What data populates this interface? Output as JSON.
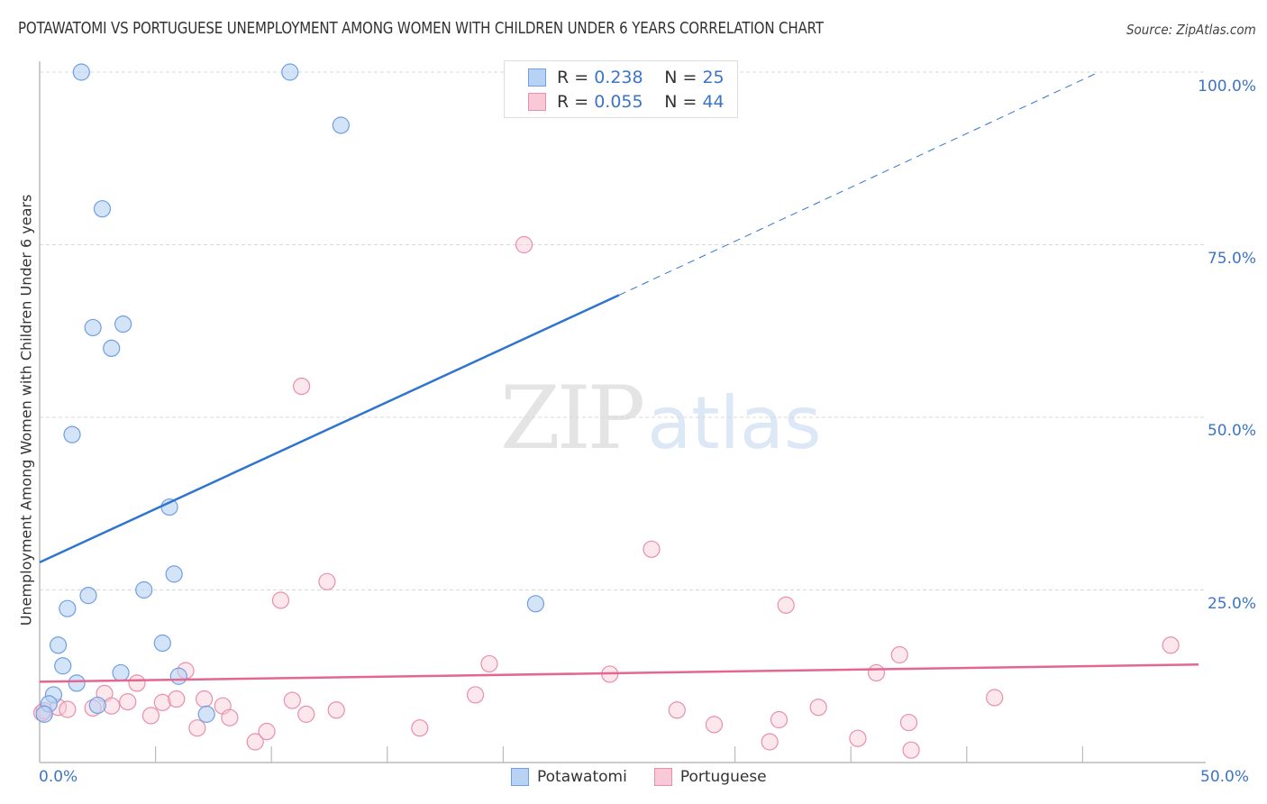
{
  "header": {
    "title": "POTAWATOMI VS PORTUGUESE UNEMPLOYMENT AMONG WOMEN WITH CHILDREN UNDER 6 YEARS CORRELATION CHART",
    "source": "Source: ZipAtlas.com"
  },
  "watermark": {
    "zip": "ZIP",
    "atlas": "atlas"
  },
  "legend": {
    "rows": [
      {
        "series": "Potawatomi",
        "r_label": "R =",
        "r_value": "0.238",
        "n_label": "N =",
        "n_value": "25",
        "color": "#b8d2f3",
        "border": "#6f9fe0"
      },
      {
        "series": "Portuguese",
        "r_label": "R =",
        "r_value": "0.055",
        "n_label": "N =",
        "n_value": "44",
        "color": "#f9c9d7",
        "border": "#e88fac"
      }
    ]
  },
  "bottom_legend": [
    {
      "label": "Potawatomi",
      "color": "#b8d2f3",
      "border": "#6f9fe0"
    },
    {
      "label": "Portuguese",
      "color": "#f9c9d7",
      "border": "#e88fac"
    }
  ],
  "axes": {
    "y_label": "Unemployment Among Women with Children Under 6 years",
    "y_ticks": [
      "100.0%",
      "75.0%",
      "50.0%",
      "25.0%"
    ],
    "x_ticks": {
      "left": "0.0%",
      "right": "50.0%"
    }
  },
  "chart_data": {
    "type": "scatter",
    "title": "POTAWATOMI VS PORTUGUESE UNEMPLOYMENT AMONG WOMEN WITH CHILDREN UNDER 6 YEARS CORRELATION CHART",
    "xlabel": "",
    "ylabel": "Unemployment Among Women with Children Under 6 years",
    "xlim": [
      0,
      50
    ],
    "ylim": [
      0,
      100
    ],
    "x_tick_labels": [
      "0.0%",
      "50.0%"
    ],
    "y_tick_labels": [
      "25.0%",
      "50.0%",
      "75.0%",
      "100.0%"
    ],
    "grid": true,
    "legend_position": "top-center",
    "series": [
      {
        "name": "Potawatomi",
        "color": "#6f9fe0",
        "R": 0.238,
        "N": 25,
        "trend": {
          "x0": 0,
          "y0": 29.0,
          "x1": 25,
          "y1": 67.7,
          "dashed_to": {
            "x": 45.7,
            "y": 100
          }
        },
        "points": [
          [
            1.8,
            100
          ],
          [
            10.8,
            100
          ],
          [
            13.0,
            92.3
          ],
          [
            2.7,
            80.2
          ],
          [
            2.3,
            63.0
          ],
          [
            3.6,
            63.5
          ],
          [
            3.1,
            60.0
          ],
          [
            1.4,
            47.5
          ],
          [
            5.6,
            37.0
          ],
          [
            5.8,
            27.3
          ],
          [
            4.5,
            25.0
          ],
          [
            2.1,
            24.2
          ],
          [
            1.2,
            22.3
          ],
          [
            0.8,
            17.0
          ],
          [
            5.3,
            17.3
          ],
          [
            1.0,
            14.0
          ],
          [
            21.4,
            23.0
          ],
          [
            3.5,
            13.0
          ],
          [
            1.6,
            11.5
          ],
          [
            6.0,
            12.5
          ],
          [
            0.6,
            9.8
          ],
          [
            0.4,
            8.5
          ],
          [
            2.5,
            8.3
          ],
          [
            7.2,
            7.0
          ],
          [
            0.2,
            7.0
          ]
        ]
      },
      {
        "name": "Portuguese",
        "color": "#e88fac",
        "R": 0.055,
        "N": 44,
        "trend": {
          "x0": 0,
          "y0": 11.7,
          "x1": 50,
          "y1": 14.2
        },
        "points": [
          [
            0.2,
            7.5
          ],
          [
            0.8,
            8.0
          ],
          [
            1.2,
            7.7
          ],
          [
            2.3,
            7.9
          ],
          [
            2.8,
            10.0
          ],
          [
            3.1,
            8.2
          ],
          [
            3.8,
            8.8
          ],
          [
            4.2,
            11.5
          ],
          [
            4.8,
            6.8
          ],
          [
            5.3,
            8.7
          ],
          [
            5.9,
            9.2
          ],
          [
            6.3,
            13.3
          ],
          [
            6.8,
            5.0
          ],
          [
            7.1,
            9.2
          ],
          [
            7.9,
            8.2
          ],
          [
            8.2,
            6.5
          ],
          [
            9.3,
            3.0
          ],
          [
            9.8,
            4.5
          ],
          [
            10.4,
            23.5
          ],
          [
            10.9,
            9.0
          ],
          [
            11.3,
            54.5
          ],
          [
            11.5,
            7.0
          ],
          [
            12.4,
            26.2
          ],
          [
            12.8,
            7.6
          ],
          [
            16.4,
            5.0
          ],
          [
            18.8,
            9.8
          ],
          [
            19.4,
            14.3
          ],
          [
            20.9,
            75.0
          ],
          [
            24.6,
            12.8
          ],
          [
            26.4,
            30.9
          ],
          [
            27.5,
            7.6
          ],
          [
            29.1,
            5.5
          ],
          [
            31.5,
            3.0
          ],
          [
            31.9,
            6.2
          ],
          [
            32.2,
            22.8
          ],
          [
            33.6,
            8.0
          ],
          [
            35.3,
            3.5
          ],
          [
            36.1,
            13.0
          ],
          [
            37.1,
            15.6
          ],
          [
            37.5,
            5.8
          ],
          [
            37.6,
            1.8
          ],
          [
            41.2,
            9.4
          ],
          [
            48.8,
            17.0
          ],
          [
            0.1,
            7.2
          ]
        ]
      }
    ]
  },
  "colors": {
    "accent": "#3d74c6",
    "blue_line": "#2f74d0",
    "pink_line": "#e3678f",
    "grid": "#d8d8d8",
    "axis": "#bbbbbb"
  }
}
